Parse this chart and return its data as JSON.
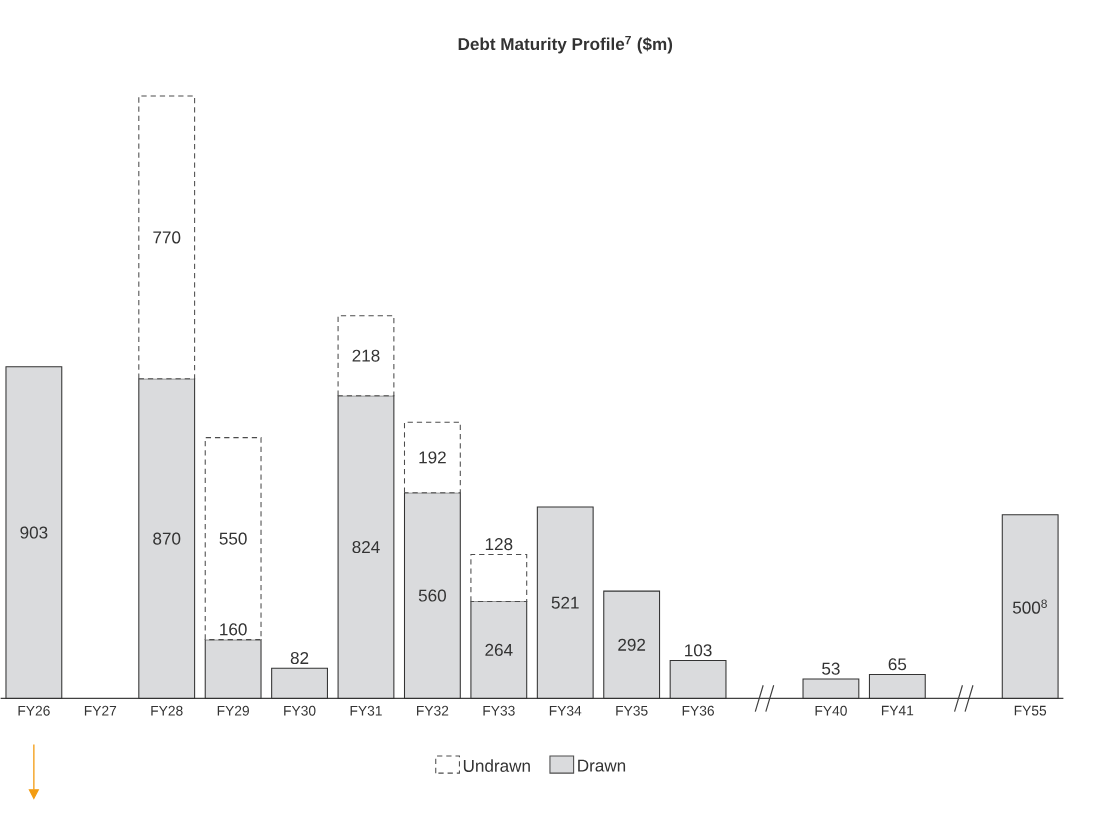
{
  "chart_data": {
    "type": "bar",
    "title": "Debt Maturity Profile$^{7}$ ($m)",
    "stacked": true,
    "legend": "bottom",
    "categories": [
      "FY26",
      "FY27",
      "FY28",
      "FY29",
      "FY30",
      "FY31",
      "FY32",
      "FY33",
      "FY34",
      "FY35",
      "FY36",
      null,
      "FY40",
      "FY41",
      null,
      "FY55"
    ],
    "series": [
      {
        "name": "Drawn",
        "color": "#dadbdd",
        "line_style": "solid",
        "values": [
          903,
          null,
          870,
          160,
          82,
          824,
          560,
          264,
          521,
          292,
          103,
          null,
          53,
          65,
          null,
          500
        ],
        "value_labels": [
          "903",
          null,
          "870",
          "160",
          "82",
          "824",
          "560",
          "264",
          "521",
          "292",
          "103",
          null,
          "53",
          "65",
          null,
          "500$^{8}$"
        ]
      },
      {
        "name": "Undrawn",
        "color": "#ffffff",
        "line_style": "dashed",
        "values": [
          null,
          null,
          770,
          550,
          null,
          218,
          192,
          128,
          null,
          null,
          null,
          null,
          null,
          null,
          null,
          null
        ],
        "value_labels": [
          null,
          null,
          "770",
          "550",
          null,
          "218",
          "192",
          "128",
          null,
          null,
          null,
          null,
          null,
          null,
          null,
          null
        ]
      }
    ]
  }
}
